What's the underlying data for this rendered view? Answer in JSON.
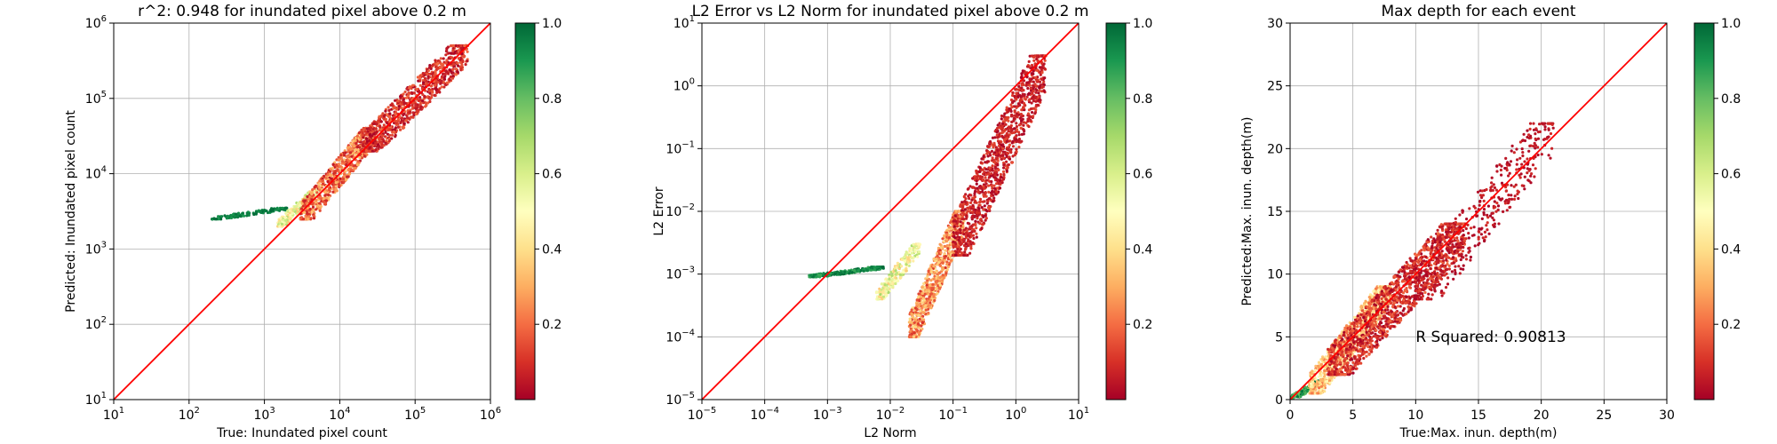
{
  "colormap": [
    "#a50026",
    "#d73027",
    "#f46d43",
    "#fdae61",
    "#fee08b",
    "#ffffbf",
    "#d9ef8b",
    "#a6d96a",
    "#66bd63",
    "#1a9850",
    "#006837"
  ],
  "line_color": "#ff0000",
  "chart_data": [
    {
      "type": "scatter",
      "title": "r^2: 0.948 for inundated pixel above 0.2 m",
      "xlabel": "True: Inundated pixel count",
      "ylabel": "Predicted: Inundated pixel count",
      "xscale": "log",
      "yscale": "log",
      "xlim": [
        10,
        1000000
      ],
      "ylim": [
        10,
        1000000
      ],
      "xticks": [
        {
          "base": "10",
          "exp": "1"
        },
        {
          "base": "10",
          "exp": "2"
        },
        {
          "base": "10",
          "exp": "3"
        },
        {
          "base": "10",
          "exp": "4"
        },
        {
          "base": "10",
          "exp": "5"
        },
        {
          "base": "10",
          "exp": "6"
        }
      ],
      "yticks": [
        {
          "base": "10",
          "exp": "1"
        },
        {
          "base": "10",
          "exp": "2"
        },
        {
          "base": "10",
          "exp": "3"
        },
        {
          "base": "10",
          "exp": "4"
        },
        {
          "base": "10",
          "exp": "5"
        },
        {
          "base": "10",
          "exp": "6"
        }
      ],
      "grid": true,
      "reference_line": "y = x",
      "colorbar": {
        "range": [
          0,
          1
        ],
        "ticks": [
          "0.2",
          "0.4",
          "0.6",
          "0.8",
          "1.0"
        ]
      },
      "annotation": "",
      "clusters": [
        {
          "x": [
            200,
            2000
          ],
          "y": [
            2500,
            3500
          ],
          "color": [
            0.9,
            1.0
          ],
          "n": 140
        },
        {
          "x": [
            1500,
            5000
          ],
          "y": [
            2000,
            6000
          ],
          "color": [
            0.35,
            0.7
          ],
          "n": 200
        },
        {
          "x": [
            3000,
            30000
          ],
          "y": [
            2500,
            40000
          ],
          "color": [
            0.05,
            0.35
          ],
          "n": 700
        },
        {
          "x": [
            20000,
            500000
          ],
          "y": [
            20000,
            500000
          ],
          "color": [
            0.0,
            0.2
          ],
          "n": 900
        }
      ]
    },
    {
      "type": "scatter",
      "title": "L2 Error vs L2 Norm for inundated pixel above 0.2 m",
      "xlabel": "L2 Norm",
      "ylabel": "L2 Error",
      "xscale": "log",
      "yscale": "log",
      "xlim": [
        1e-05,
        10
      ],
      "ylim": [
        1e-05,
        10
      ],
      "xticks": [
        {
          "base": "10",
          "exp": "−5"
        },
        {
          "base": "10",
          "exp": "−4"
        },
        {
          "base": "10",
          "exp": "−3"
        },
        {
          "base": "10",
          "exp": "−2"
        },
        {
          "base": "10",
          "exp": "−1"
        },
        {
          "base": "10",
          "exp": "0"
        },
        {
          "base": "10",
          "exp": "1"
        }
      ],
      "yticks": [
        {
          "base": "10",
          "exp": "−5"
        },
        {
          "base": "10",
          "exp": "−4"
        },
        {
          "base": "10",
          "exp": "−3"
        },
        {
          "base": "10",
          "exp": "−2"
        },
        {
          "base": "10",
          "exp": "−1"
        },
        {
          "base": "10",
          "exp": "0"
        },
        {
          "base": "10",
          "exp": "1"
        }
      ],
      "grid": true,
      "reference_line": "y = x",
      "colorbar": {
        "range": [
          0,
          1
        ],
        "ticks": [
          "0.2",
          "0.4",
          "0.6",
          "0.8",
          "1.0"
        ]
      },
      "annotation": "",
      "clusters": [
        {
          "x": [
            0.0005,
            0.008
          ],
          "y": [
            0.0009,
            0.0013
          ],
          "color": [
            0.85,
            1.0
          ],
          "n": 220
        },
        {
          "x": [
            0.006,
            0.03
          ],
          "y": [
            0.0004,
            0.003
          ],
          "color": [
            0.35,
            0.7
          ],
          "n": 250
        },
        {
          "x": [
            0.02,
            0.15
          ],
          "y": [
            0.0001,
            0.01
          ],
          "color": [
            0.1,
            0.4
          ],
          "n": 700
        },
        {
          "x": [
            0.1,
            3.0
          ],
          "y": [
            0.002,
            3.0
          ],
          "color": [
            0.0,
            0.15
          ],
          "n": 1100
        }
      ]
    },
    {
      "type": "scatter",
      "title": "Max depth for each event",
      "xlabel": "True:Max. inun. depth(m)",
      "ylabel": "Predicted:Max. inun. depth(m)",
      "xscale": "linear",
      "yscale": "linear",
      "xlim": [
        0,
        30
      ],
      "ylim": [
        0,
        30
      ],
      "xticks": [
        {
          "base": "0"
        },
        {
          "base": "5"
        },
        {
          "base": "10"
        },
        {
          "base": "15"
        },
        {
          "base": "20"
        },
        {
          "base": "25"
        },
        {
          "base": "30"
        }
      ],
      "yticks": [
        {
          "base": "0"
        },
        {
          "base": "5"
        },
        {
          "base": "10"
        },
        {
          "base": "15"
        },
        {
          "base": "20"
        },
        {
          "base": "25"
        },
        {
          "base": "30"
        }
      ],
      "grid": true,
      "reference_line": "y = x",
      "colorbar": {
        "range": [
          0,
          1
        ],
        "ticks": [
          "0.2",
          "0.4",
          "0.6",
          "0.8",
          "1.0"
        ]
      },
      "annotation": "R Squared: 0.90813",
      "clusters": [
        {
          "x": [
            0.0,
            2.5
          ],
          "y": [
            0.0,
            1.5
          ],
          "color": [
            0.7,
            1.0
          ],
          "n": 150
        },
        {
          "x": [
            1.5,
            8.0
          ],
          "y": [
            0.5,
            9.0
          ],
          "color": [
            0.2,
            0.5
          ],
          "n": 900
        },
        {
          "x": [
            3.0,
            14.0
          ],
          "y": [
            2.0,
            14.0
          ],
          "color": [
            0.0,
            0.2
          ],
          "n": 1400
        },
        {
          "x": [
            10.0,
            21.0
          ],
          "y": [
            8.0,
            22.0
          ],
          "color": [
            0.0,
            0.1
          ],
          "n": 400
        }
      ]
    }
  ]
}
